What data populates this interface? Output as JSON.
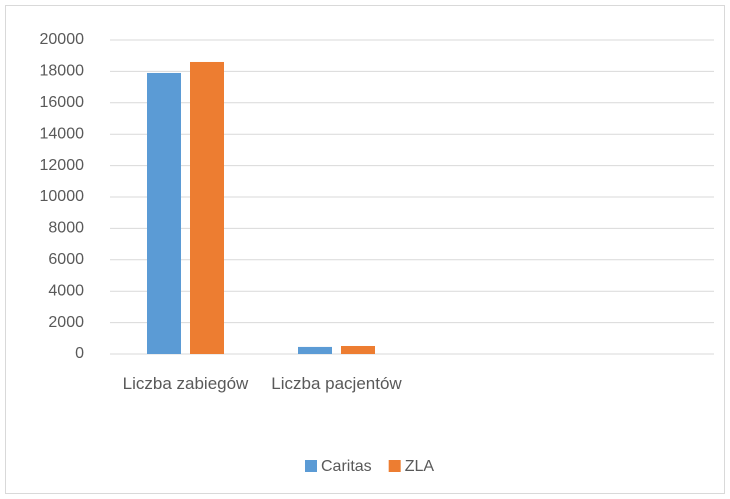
{
  "chart_data": {
    "type": "bar",
    "categories": [
      "Liczba zabiegów",
      "Liczba pacjentów",
      null,
      null
    ],
    "series": [
      {
        "name": "Caritas",
        "color": "#5b9bd5",
        "values": [
          17900,
          450,
          null,
          null
        ]
      },
      {
        "name": "ZLA",
        "color": "#ed7d31",
        "values": [
          18600,
          510,
          null,
          null
        ]
      }
    ],
    "ylim": [
      0,
      20000
    ],
    "yticks": [
      0,
      2000,
      4000,
      6000,
      8000,
      10000,
      12000,
      14000,
      16000,
      18000,
      20000
    ],
    "grid": true,
    "legend": "bottom"
  }
}
